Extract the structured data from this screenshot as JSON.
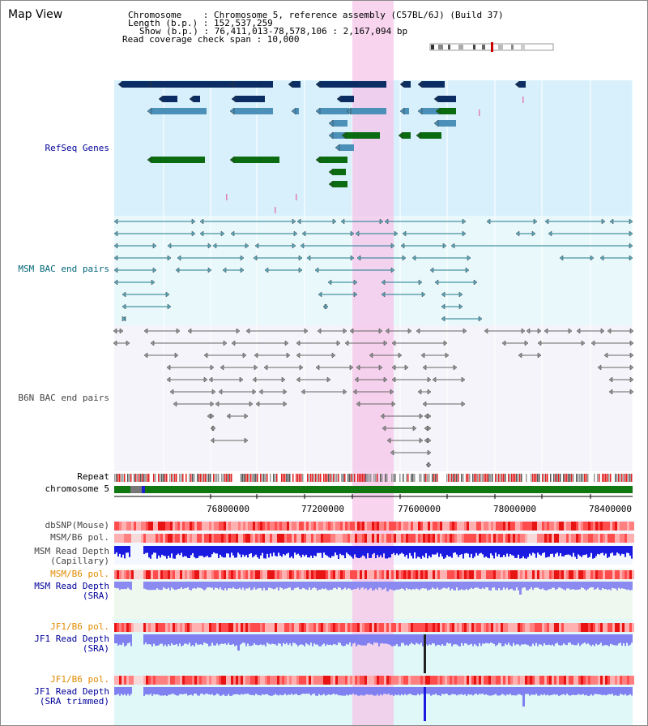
{
  "title": "Map View",
  "header": {
    "lines": [
      "Chromosome    : Chromosome 5, reference assembly (C57BL/6J) (Build 37)",
      "Length (b.p.) : 152,537,259",
      "Show (b.p.) : 76,411,013-78,578,106 : 2,167,094 bp",
      "Read coverage check span : 10,000"
    ]
  },
  "tracks": {
    "refseq": "RefSeq Genes",
    "msm_bac": "MSM BAC end pairs",
    "b6n_bac": "B6N BAC end pairs",
    "repeat": "Repeat",
    "chromosome": "chromosome 5",
    "dbsnp": "dbSNP(Mouse)",
    "msm_pol": "MSM/B6 pol.",
    "msm_depth_cap_1": "MSM Read Depth",
    "msm_depth_cap_2": "(Capillary)",
    "msm_pol_2": "MSM/B6 pol.",
    "msm_depth_sra_1": "MSM Read Depth",
    "msm_depth_sra_2": "(SRA)",
    "jf1_pol": "JF1/B6 pol.",
    "jf1_depth_1": "JF1 Read Depth",
    "jf1_depth_2": "(SRA)",
    "jf1_pol_2": "JF1/B6 pol.",
    "jf1_trim_1": "JF1 Read Depth",
    "jf1_trim_2": "(SRA trimmed)"
  },
  "axis": {
    "ticks": [
      "76800000",
      "77200000",
      "77600000",
      "78000000",
      "78400000"
    ]
  },
  "colors": {
    "refseq_bg": "#d8f0fb",
    "bac_bg": "#e8f8fb",
    "b6n_bg": "#f4f4fa",
    "highlight": "#f5c6e9",
    "gene_navy": "#0b2d63",
    "gene_steel": "#4a90b8",
    "gene_green": "#0a6b10",
    "msm_line": "#1f7a8c",
    "b6n_line": "#666666"
  }
}
